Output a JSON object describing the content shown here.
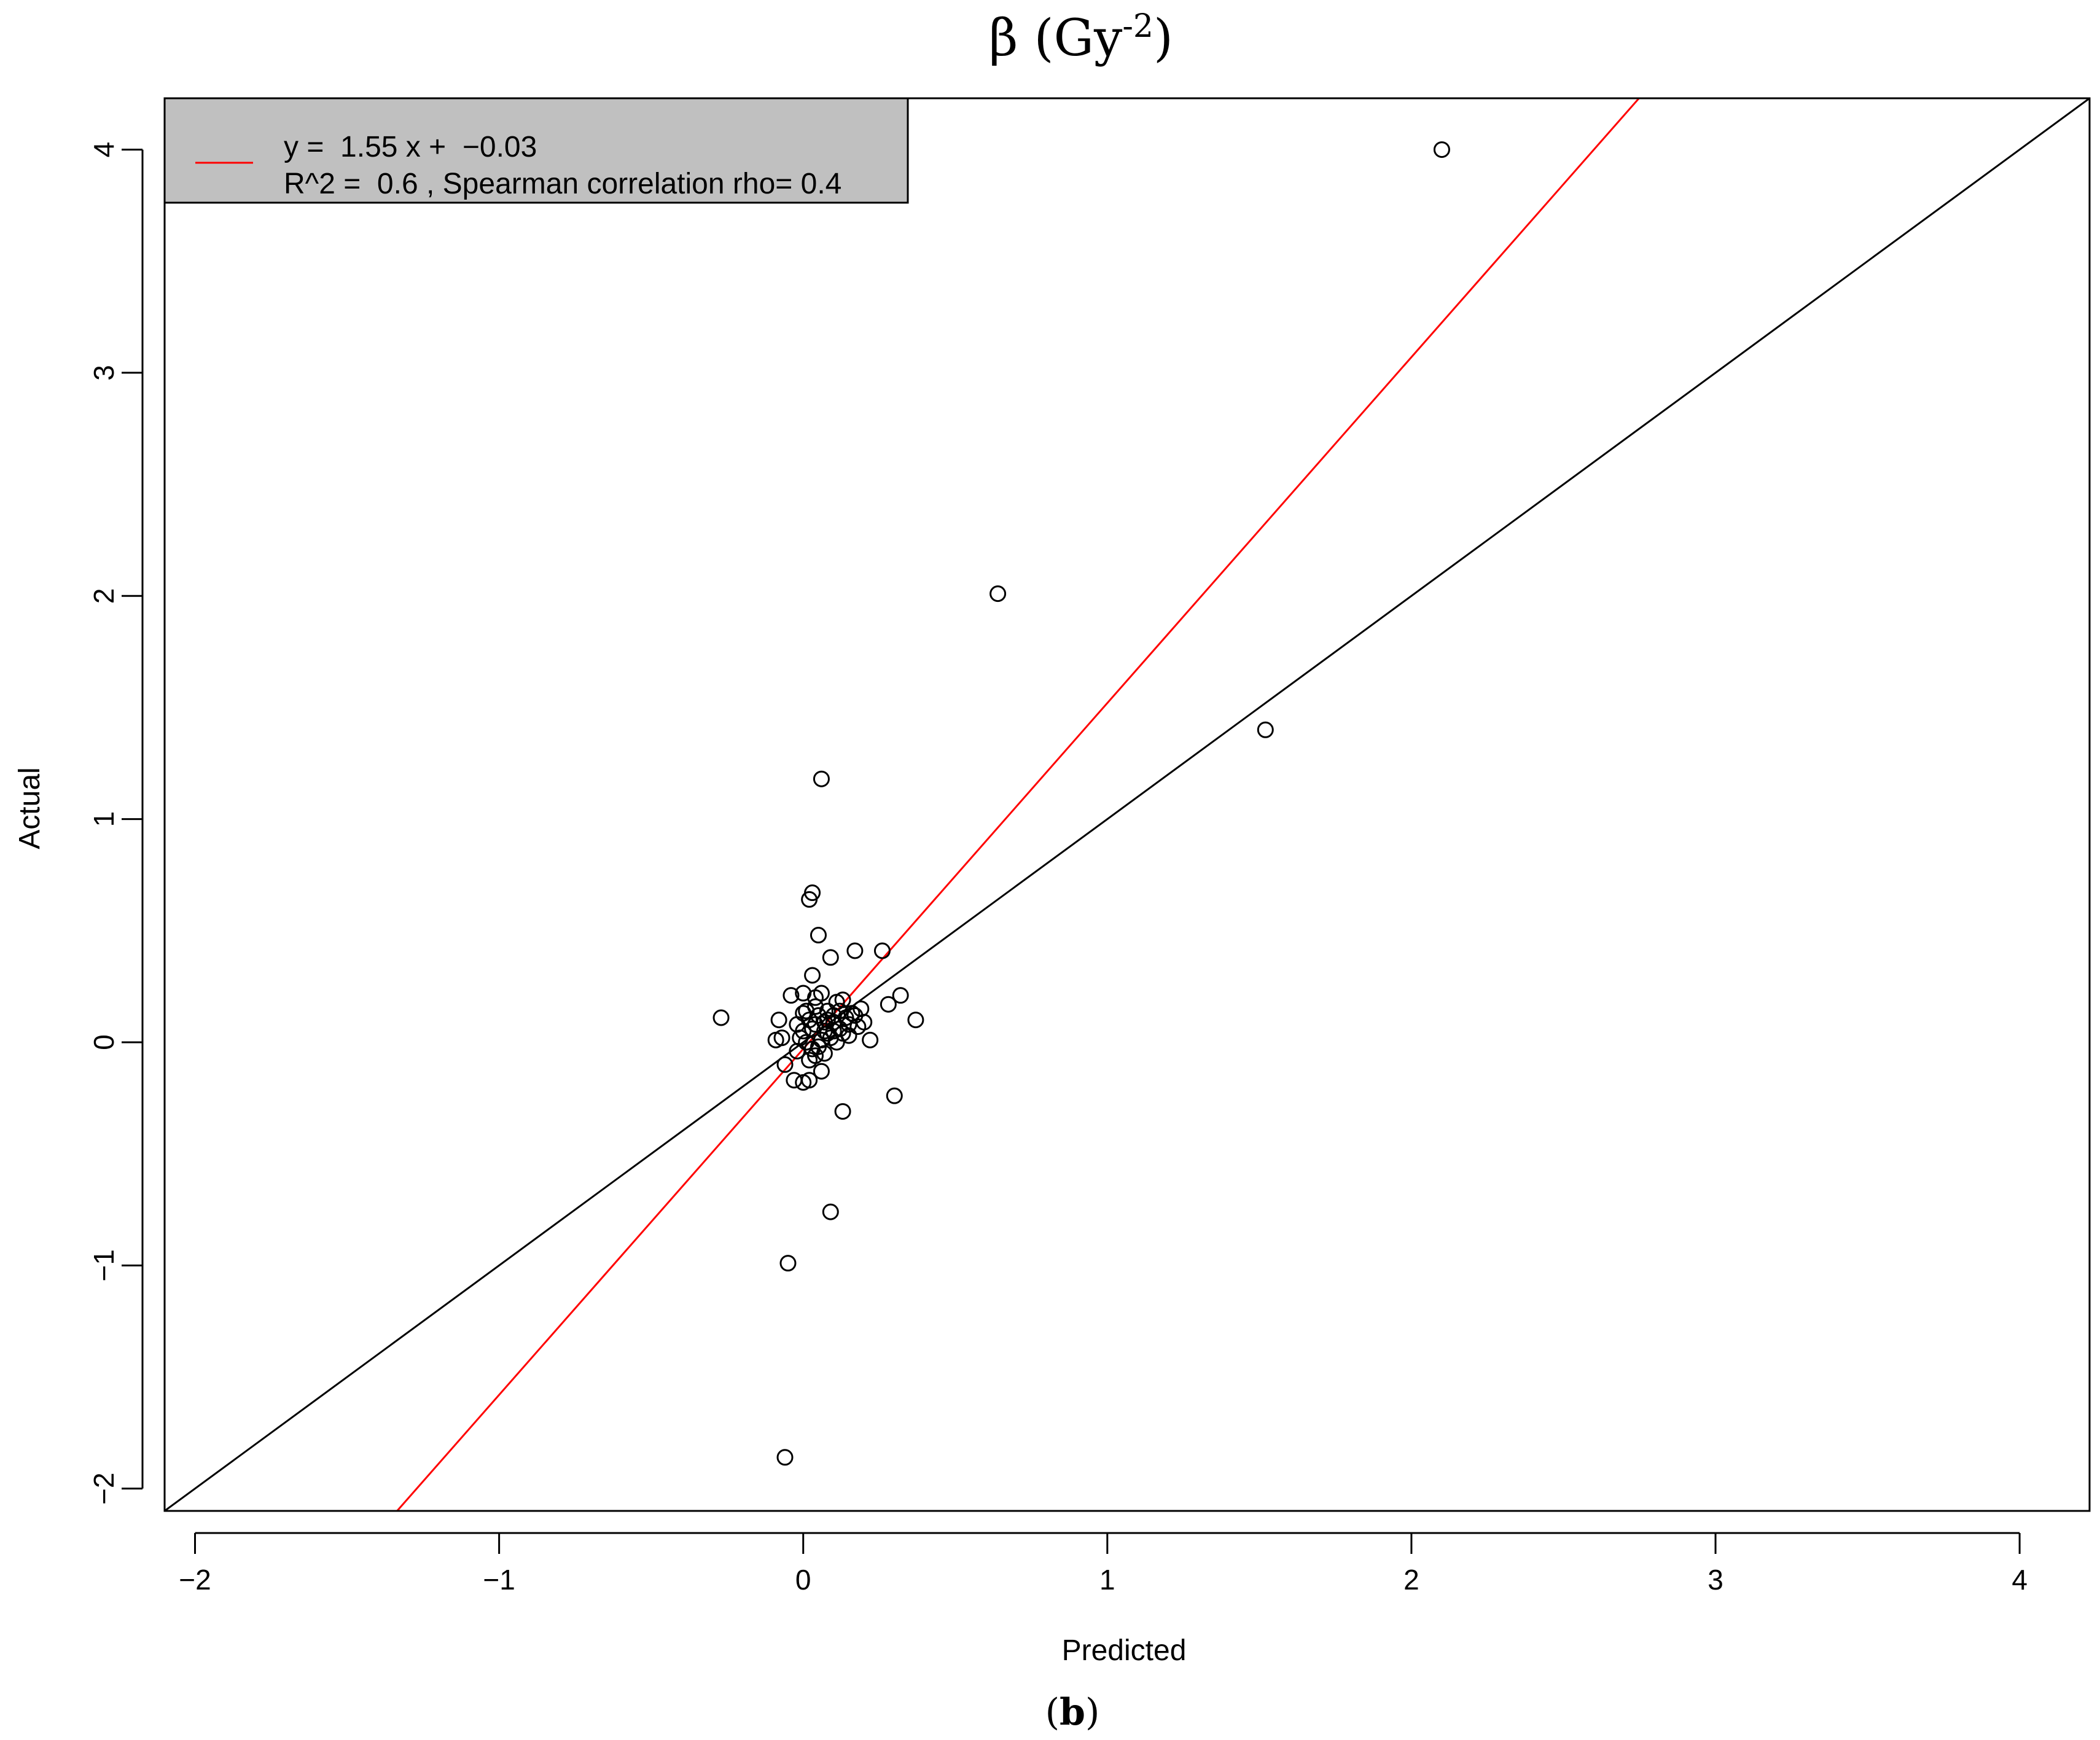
{
  "chart_data": {
    "type": "scatter",
    "title": {
      "symbol": "β",
      "open": " (Gy",
      "sup": "-2",
      "close": ")"
    },
    "xlabel": "Predicted",
    "ylabel": "Actual",
    "caption": {
      "open": "(",
      "letter": "b",
      "close": ")"
    },
    "xlim": [
      -2.1,
      4.23
    ],
    "ylim": [
      -2.1,
      4.23
    ],
    "x_ticks": [
      -2,
      -1,
      0,
      1,
      2,
      3,
      4
    ],
    "x_tick_labels": [
      "−2",
      "−1",
      "0",
      "1",
      "2",
      "3",
      "4"
    ],
    "y_ticks": [
      -2,
      -1,
      0,
      1,
      2,
      3,
      4
    ],
    "y_tick_labels": [
      "−2",
      "−1",
      "0",
      "1",
      "2",
      "3",
      "4"
    ],
    "grid": false,
    "legend": {
      "placement": "top-left",
      "background": "#c0c0c0",
      "line1": "y =  1.55 x +  −0.03",
      "line2": "R^2 =  0.6 , Spearman correlation rho= 0.4"
    },
    "lines": [
      {
        "kind": "identity",
        "slope": 1,
        "intercept": 0,
        "color": "#000000"
      },
      {
        "kind": "fit",
        "slope": 1.55,
        "intercept": -0.03,
        "color": "#ff0000"
      }
    ],
    "points": [
      [
        2.1,
        4.0
      ],
      [
        0.64,
        2.01
      ],
      [
        1.52,
        1.4
      ],
      [
        0.06,
        1.18
      ],
      [
        0.03,
        0.67
      ],
      [
        0.02,
        0.64
      ],
      [
        0.05,
        0.48
      ],
      [
        0.09,
        0.38
      ],
      [
        0.17,
        0.41
      ],
      [
        0.26,
        0.41
      ],
      [
        0.32,
        0.21
      ],
      [
        0.28,
        0.17
      ],
      [
        0.37,
        0.1
      ],
      [
        0.22,
        0.01
      ],
      [
        -0.27,
        0.11
      ],
      [
        -0.09,
        0.01
      ],
      [
        -0.08,
        0.1
      ],
      [
        -0.07,
        0.02
      ],
      [
        -0.06,
        -0.1
      ],
      [
        -0.04,
        0.21
      ],
      [
        -0.03,
        -0.17
      ],
      [
        0.0,
        -0.18
      ],
      [
        0.02,
        -0.17
      ],
      [
        0.03,
        0.3
      ],
      [
        0.06,
        -0.13
      ],
      [
        0.13,
        -0.31
      ],
      [
        0.3,
        -0.24
      ],
      [
        0.09,
        -0.76
      ],
      [
        -0.05,
        -0.99
      ],
      [
        -0.06,
        -1.86
      ],
      [
        0.0,
        0.05
      ],
      [
        0.02,
        0.1
      ],
      [
        0.04,
        0.08
      ],
      [
        0.05,
        0.12
      ],
      [
        0.07,
        0.05
      ],
      [
        0.08,
        0.14
      ],
      [
        0.1,
        0.09
      ],
      [
        0.12,
        0.06
      ],
      [
        0.14,
        0.11
      ],
      [
        0.15,
        0.03
      ],
      [
        0.16,
        0.13
      ],
      [
        0.18,
        0.07
      ],
      [
        0.19,
        0.15
      ],
      [
        0.2,
        0.09
      ],
      [
        0.11,
        0.18
      ],
      [
        0.13,
        0.19
      ],
      [
        0.01,
        0.0
      ],
      [
        -0.01,
        0.02
      ],
      [
        0.03,
        -0.03
      ],
      [
        0.05,
        -0.02
      ],
      [
        0.06,
        0.01
      ],
      [
        0.09,
        0.02
      ],
      [
        0.11,
        0.0
      ],
      [
        0.13,
        0.04
      ],
      [
        0.01,
        0.14
      ],
      [
        0.0,
        0.22
      ],
      [
        0.04,
        0.2
      ],
      [
        0.06,
        0.22
      ],
      [
        -0.02,
        -0.04
      ],
      [
        0.02,
        -0.08
      ],
      [
        0.04,
        -0.06
      ],
      [
        0.07,
        -0.05
      ],
      [
        0.08,
        0.1
      ],
      [
        0.1,
        0.12
      ],
      [
        0.03,
        0.06
      ],
      [
        0.07,
        0.09
      ],
      [
        -0.02,
        0.08
      ],
      [
        0.0,
        0.13
      ],
      [
        0.12,
        0.14
      ],
      [
        0.15,
        0.08
      ],
      [
        0.17,
        0.12
      ],
      [
        0.04,
        0.16
      ],
      [
        0.08,
        0.04
      ],
      [
        0.1,
        0.05
      ]
    ]
  }
}
